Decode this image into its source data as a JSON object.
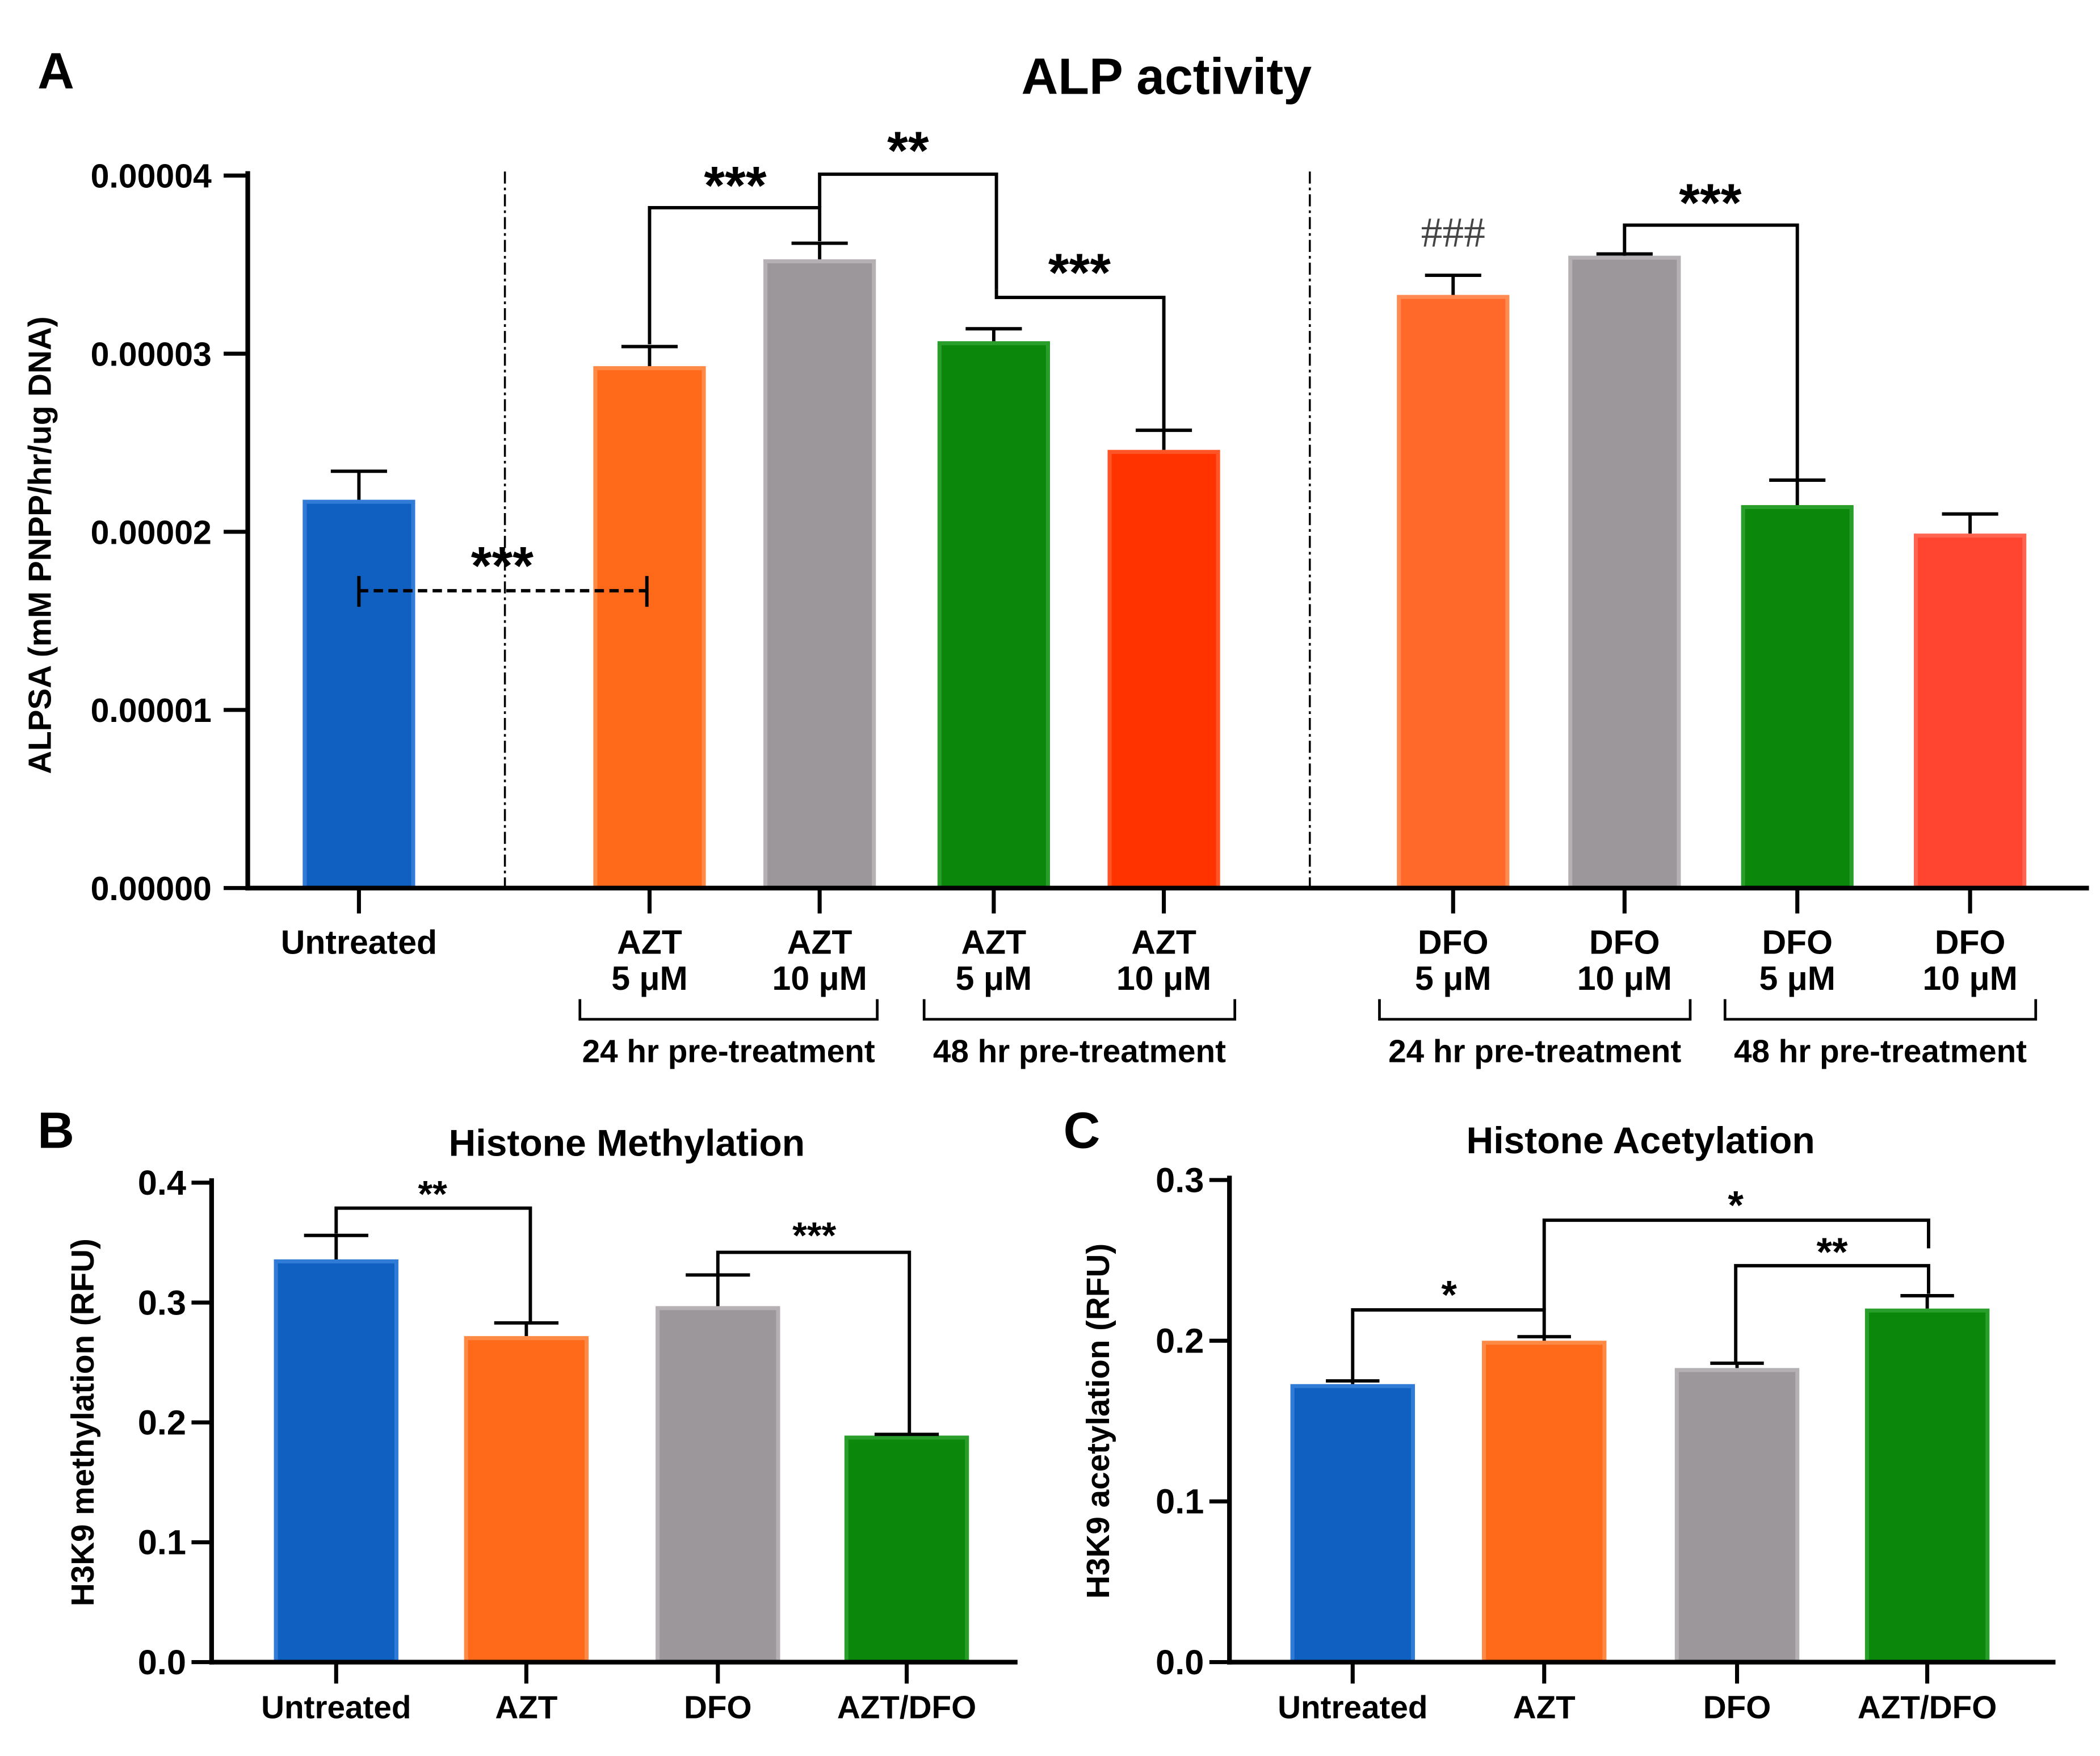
{
  "chart_data": [
    {
      "panel": "A",
      "type": "bar",
      "title": "ALP activity",
      "xlabel": "",
      "ylabel": "ALPSA (mM PNPP/hr/ug DNA)",
      "ylim": [
        0,
        4e-05
      ],
      "yticks": [
        0,
        1e-05,
        2e-05,
        3e-05,
        4e-05
      ],
      "ytick_labels": [
        "0.00000",
        "0.00001",
        "0.00002",
        "0.00003",
        "0.00004"
      ],
      "categories": [
        [
          "Untreated"
        ],
        [
          "AZT",
          "5 μM"
        ],
        [
          "AZT",
          "10 μM"
        ],
        [
          "AZT",
          "5 μM"
        ],
        [
          "AZT",
          "10 μM"
        ],
        [
          "DFO",
          "5 μM"
        ],
        [
          "DFO",
          "10 μM"
        ],
        [
          "DFO",
          "5 μM"
        ],
        [
          "DFO",
          "10 μM"
        ]
      ],
      "values": [
        2.18e-05,
        2.93e-05,
        3.53e-05,
        3.07e-05,
        2.46e-05,
        3.33e-05,
        3.55e-05,
        2.15e-05,
        1.99e-05
      ],
      "errors": [
        1.6e-06,
        1.1e-06,
        9e-07,
        7e-07,
        1.1e-06,
        1.1e-06,
        1e-07,
        1.4e-06,
        1.1e-06
      ],
      "colors": [
        "#1060c2",
        "#ff6a1a",
        "#9b979a",
        "#0b870b",
        "#ff3300",
        "#ff6a2b",
        "#9b979a",
        "#0b870b",
        "#ff4530"
      ],
      "edge_colors": [
        "#2f7bd6",
        "#ff8a45",
        "#b4b0b3",
        "#2a9e2a",
        "#ff5526",
        "#ff8a52",
        "#b4b0b3",
        "#2a9e2a",
        "#ff6450"
      ],
      "groups": [
        {
          "label": "24 hr pre-treatment",
          "from": 1,
          "to": 2
        },
        {
          "label": "48 hr pre-treatment",
          "from": 3,
          "to": 4
        },
        {
          "label": "24 hr pre-treatment",
          "from": 5,
          "to": 6
        },
        {
          "label": "48 hr pre-treatment",
          "from": 7,
          "to": 8
        }
      ],
      "significance": [
        {
          "label": "***",
          "from": 1,
          "to": 2
        },
        {
          "label": "**",
          "from": 2,
          "to": 3
        },
        {
          "label": "***",
          "from": 3,
          "to": 4
        },
        {
          "label": "***",
          "from": 6,
          "to": 7
        },
        {
          "label": "***",
          "from": 0,
          "to": 1,
          "dashed": true
        }
      ],
      "markers": [
        {
          "label": "###",
          "bar": 5
        }
      ],
      "grid": false
    },
    {
      "panel": "B",
      "type": "bar",
      "title": "Histone Methylation",
      "xlabel": "",
      "ylabel": "H3K9 methylation (RFU)",
      "ylim": [
        0,
        0.4
      ],
      "yticks": [
        0,
        0.1,
        0.2,
        0.3,
        0.4
      ],
      "ytick_labels": [
        "0.0",
        "0.1",
        "0.2",
        "0.3",
        "0.4"
      ],
      "categories": [
        [
          "Untreated"
        ],
        [
          "AZT"
        ],
        [
          "DFO"
        ],
        [
          "AZT/DFO"
        ]
      ],
      "values": [
        0.336,
        0.272,
        0.297,
        0.189
      ],
      "errors": [
        0.02,
        0.011,
        0.026,
        0.001
      ],
      "colors": [
        "#1060c2",
        "#ff6a1a",
        "#9b979a",
        "#0b870b"
      ],
      "edge_colors": [
        "#2f7bd6",
        "#ff8a45",
        "#b4b0b3",
        "#2a9e2a"
      ],
      "significance": [
        {
          "label": "**",
          "from": 0,
          "to": 1
        },
        {
          "label": "***",
          "from": 2,
          "to": 3
        }
      ],
      "grid": false
    },
    {
      "panel": "C",
      "type": "bar",
      "title": "Histone Acetylation",
      "xlabel": "",
      "ylabel": "H3K9 acetylation (RFU)",
      "ylim": [
        0,
        0.3
      ],
      "yticks": [
        0,
        0.1,
        0.2,
        0.3
      ],
      "ytick_labels": [
        "0.0",
        "0.1",
        "0.2",
        "0.3"
      ],
      "categories": [
        [
          "Untreated"
        ],
        [
          "AZT"
        ],
        [
          "DFO"
        ],
        [
          "AZT/DFO"
        ]
      ],
      "values": [
        0.173,
        0.2,
        0.183,
        0.22
      ],
      "errors": [
        0.002,
        0.0025,
        0.003,
        0.008
      ],
      "colors": [
        "#1060c2",
        "#ff6a1a",
        "#9b979a",
        "#0b870b"
      ],
      "edge_colors": [
        "#2f7bd6",
        "#ff8a45",
        "#b4b0b3",
        "#2a9e2a"
      ],
      "significance": [
        {
          "label": "*",
          "from": 0,
          "to": 1
        },
        {
          "label": "*",
          "from": 1,
          "to": 3
        },
        {
          "label": "**",
          "from": 2,
          "to": 3
        }
      ],
      "grid": false
    }
  ]
}
